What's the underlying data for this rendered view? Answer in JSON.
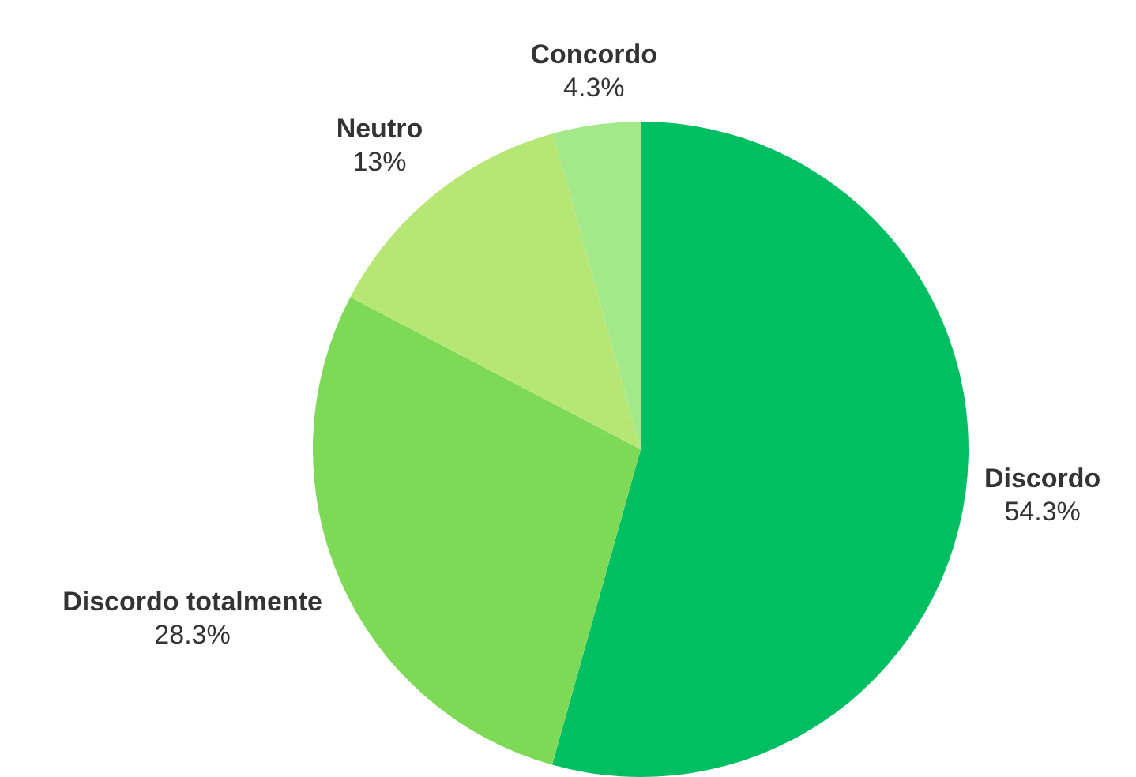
{
  "chart_data": {
    "type": "pie",
    "categories": [
      "Discordo",
      "Discordo totalmente",
      "Neutro",
      "Concordo"
    ],
    "values": [
      54.3,
      28.3,
      13,
      4.3
    ],
    "colors": [
      "#00bf63",
      "#7ed957",
      "#b6e673",
      "#a3e98a"
    ],
    "value_labels": [
      "54.3%",
      "28.3%",
      "13%",
      "4.3%"
    ],
    "legend": false
  }
}
